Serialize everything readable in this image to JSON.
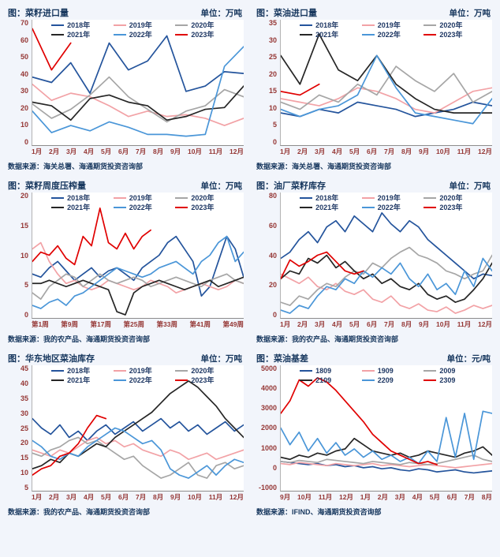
{
  "colors": {
    "title_text": "#17375e",
    "axis_labels": "#953735",
    "source_text": "#17375e",
    "page_background": "#f2f5fb"
  },
  "chart_data": [
    {
      "type": "line",
      "title": "图：菜籽进口量",
      "unit_label": "单位：万吨",
      "source": "数据来源：海关总署、海通期货投资咨询部",
      "ylim": [
        0,
        70
      ],
      "yticks": [
        0,
        10,
        20,
        30,
        40,
        50,
        60,
        70
      ],
      "x_ticks": [
        "1月",
        "2月",
        "3月",
        "4月",
        "5月",
        "6月",
        "7月",
        "8月",
        "9月",
        "10月",
        "11月",
        "12月"
      ],
      "grid": false,
      "legend_position": "top",
      "series": [
        {
          "name": "2018年",
          "color": "#24549c",
          "values": [
            38,
            35,
            46,
            29,
            57,
            42,
            47,
            61,
            30,
            33,
            41,
            40
          ]
        },
        {
          "name": "2019年",
          "color": "#f2a2a6",
          "values": [
            34,
            25,
            29,
            27,
            22,
            16,
            19,
            16,
            17,
            15,
            11,
            15
          ]
        },
        {
          "name": "2020年",
          "color": "#a6a6a6",
          "values": [
            23,
            15,
            20,
            28,
            38,
            27,
            20,
            13,
            19,
            22,
            31,
            27
          ]
        },
        {
          "name": "2021年",
          "color": "#262626",
          "values": [
            24,
            22,
            14,
            26,
            28,
            24,
            22,
            14,
            16,
            20,
            21,
            33
          ]
        },
        {
          "name": "2022年",
          "color": "#4a96d8",
          "values": [
            19,
            7,
            11,
            8,
            13,
            10,
            6,
            6,
            5,
            6,
            44,
            55
          ]
        },
        {
          "name": "2023年",
          "color": "#e00000",
          "values": [
            65,
            42,
            57,
            null,
            null,
            null,
            null,
            null,
            null,
            null,
            null,
            null
          ]
        }
      ]
    },
    {
      "type": "line",
      "title": "图：菜油进口量",
      "unit_label": "单位：万吨",
      "source": "数据来源：海关总署、海通期货投资咨询部",
      "ylim": [
        0,
        35
      ],
      "yticks": [
        0,
        5,
        10,
        15,
        20,
        25,
        30,
        35
      ],
      "x_ticks": [
        "1月",
        "2月",
        "3月",
        "4月",
        "5月",
        "6月",
        "7月",
        "8月",
        "9月",
        "10月",
        "11月",
        "12月"
      ],
      "grid": false,
      "legend_position": "top",
      "series": [
        {
          "name": "2018年",
          "color": "#24549c",
          "values": [
            9,
            8,
            10,
            9,
            12,
            11,
            10,
            8,
            9,
            10,
            12,
            11
          ]
        },
        {
          "name": "2019年",
          "color": "#f2a2a6",
          "values": [
            13,
            12,
            11,
            13,
            16,
            15,
            13,
            10,
            9,
            12,
            15,
            16
          ]
        },
        {
          "name": "2020年",
          "color": "#a6a6a6",
          "values": [
            12,
            10,
            14,
            12,
            17,
            14,
            22,
            18,
            15,
            20,
            12,
            15
          ]
        },
        {
          "name": "2021年",
          "color": "#262626",
          "values": [
            25,
            17,
            31,
            21,
            18,
            25,
            17,
            13,
            10,
            9,
            9,
            9
          ]
        },
        {
          "name": "2022年",
          "color": "#4a96d8",
          "values": [
            10,
            8,
            10,
            11,
            14,
            25,
            16,
            9,
            8,
            7,
            6,
            13
          ]
        },
        {
          "name": "2023年",
          "color": "#e00000",
          "values": [
            15,
            14,
            17,
            null,
            null,
            null,
            null,
            null,
            null,
            null,
            null,
            null
          ]
        }
      ]
    },
    {
      "type": "line",
      "title": "图：菜籽周度压榨量",
      "unit_label": "单位：万吨",
      "source": "数据来源：我的农产品、海通期货投资咨询部",
      "ylim": [
        0,
        20
      ],
      "yticks": [
        0,
        5,
        10,
        15,
        20
      ],
      "x_ticks": [
        "第1周",
        "第9周",
        "第17周",
        "第25周",
        "第33周",
        "第41周",
        "第49周"
      ],
      "grid": false,
      "legend_position": "top",
      "series": [
        {
          "name": "2018年",
          "color": "#24549c",
          "values": [
            7,
            6.5,
            8,
            9,
            7.5,
            6,
            7,
            8,
            6.5,
            7.5,
            8,
            7,
            6,
            8,
            9,
            10,
            12,
            13,
            11,
            9,
            3.5,
            5,
            9,
            13,
            11,
            6.5
          ]
        },
        {
          "name": "2019年",
          "color": "#f2a2a6",
          "values": [
            11,
            12,
            9,
            7,
            5.5,
            6,
            5,
            4.5,
            5,
            6,
            5.5,
            5,
            4.5,
            5,
            6,
            5.5,
            5,
            4,
            4.5,
            5,
            5.5,
            5,
            4.5,
            5,
            6,
            5.5
          ]
        },
        {
          "name": "2020年",
          "color": "#a6a6a6",
          "values": [
            4,
            3,
            5,
            6,
            7,
            6.5,
            5,
            6,
            7,
            6,
            5.5,
            6,
            6.5,
            6,
            5,
            5.5,
            6,
            6.5,
            6,
            5.5,
            5,
            6,
            6.5,
            7,
            6,
            5.5
          ]
        },
        {
          "name": "2021年",
          "color": "#262626",
          "values": [
            5.5,
            5.5,
            6,
            5.5,
            5,
            5.5,
            6,
            5.5,
            5,
            4.5,
            1,
            0.5,
            4,
            5,
            5.5,
            6,
            5.5,
            5,
            4.5,
            5,
            5.5,
            6,
            5,
            5.5,
            6,
            6.5
          ]
        },
        {
          "name": "2022年",
          "color": "#4a96d8",
          "values": [
            2,
            1.5,
            2.5,
            3,
            2,
            3.5,
            4,
            5,
            6,
            7,
            8,
            7.5,
            7,
            6.5,
            7,
            8,
            8.5,
            9,
            8,
            7,
            9,
            10,
            12,
            13,
            9,
            10.5
          ]
        },
        {
          "name": "2023年",
          "color": "#e00000",
          "values": [
            9,
            10.5,
            10,
            11.5,
            9.5,
            8.5,
            13,
            11.5,
            17.5,
            12,
            11,
            13.5,
            11,
            13,
            14,
            null,
            null,
            null,
            null,
            null,
            null,
            null,
            null,
            null,
            null,
            null
          ]
        }
      ]
    },
    {
      "type": "line",
      "title": "图：油厂菜籽库存",
      "unit_label": "单位：万吨",
      "source": "数据来源：我的农产品、海通期货投资咨询部",
      "ylim": [
        0,
        80
      ],
      "yticks": [
        0,
        20,
        40,
        60,
        80
      ],
      "x_ticks": [
        "1月",
        "2月",
        "3月",
        "4月",
        "5月",
        "6月",
        "7月",
        "8月",
        "9月",
        "10月",
        "11月",
        "12月"
      ],
      "grid": false,
      "legend_position": "top",
      "series": [
        {
          "name": "2018年",
          "color": "#24549c",
          "values": [
            38,
            42,
            50,
            55,
            48,
            58,
            62,
            55,
            65,
            60,
            55,
            67,
            60,
            55,
            62,
            58,
            50,
            45,
            40,
            35,
            30,
            25,
            28,
            27
          ]
        },
        {
          "name": "2019年",
          "color": "#f2a2a6",
          "values": [
            28,
            25,
            22,
            26,
            20,
            18,
            22,
            17,
            15,
            18,
            12,
            10,
            14,
            8,
            6,
            9,
            5,
            4,
            7,
            3,
            5,
            8,
            6,
            8
          ]
        },
        {
          "name": "2020年",
          "color": "#a6a6a6",
          "values": [
            10,
            8,
            14,
            12,
            18,
            22,
            20,
            26,
            30,
            28,
            35,
            32,
            38,
            42,
            45,
            40,
            38,
            35,
            30,
            28,
            25,
            28,
            30,
            40
          ]
        },
        {
          "name": "2021年",
          "color": "#262626",
          "values": [
            25,
            30,
            28,
            38,
            35,
            40,
            32,
            36,
            30,
            25,
            28,
            22,
            25,
            20,
            18,
            22,
            15,
            12,
            14,
            10,
            12,
            18,
            25,
            35
          ]
        },
        {
          "name": "2022年",
          "color": "#4a96d8",
          "values": [
            5,
            3,
            8,
            6,
            14,
            20,
            18,
            25,
            22,
            30,
            26,
            32,
            28,
            35,
            25,
            20,
            28,
            18,
            22,
            15,
            30,
            20,
            38,
            30
          ]
        },
        {
          "name": "2023年",
          "color": "#e00000",
          "values": [
            25,
            37,
            33,
            36,
            40,
            42,
            36,
            30,
            28,
            30,
            null,
            null,
            null,
            null,
            null,
            null,
            null,
            null,
            null,
            null,
            null,
            null,
            null,
            null
          ]
        }
      ]
    },
    {
      "type": "line",
      "title": "图：华东地区菜油库存",
      "unit_label": "单位：万吨",
      "source": "数据来源：我的农产品、海通期货投资咨询部",
      "ylim": [
        5,
        45
      ],
      "yticks": [
        5,
        10,
        15,
        20,
        25,
        30,
        35,
        40,
        45
      ],
      "x_ticks": [
        "1月",
        "2月",
        "3月",
        "4月",
        "5月",
        "6月",
        "7月",
        "8月",
        "9月",
        "10月",
        "11月",
        "12月"
      ],
      "grid": false,
      "legend_position": "top",
      "series": [
        {
          "name": "2018年",
          "color": "#24549c",
          "values": [
            28,
            25,
            23,
            26,
            22,
            24,
            21,
            24,
            26,
            23,
            25,
            27,
            24,
            26,
            28,
            25,
            27,
            24,
            26,
            23,
            25,
            27,
            24,
            26
          ]
        },
        {
          "name": "2019年",
          "color": "#f2a2a6",
          "values": [
            18,
            17,
            16,
            18,
            17,
            19,
            21,
            22,
            20,
            21,
            19,
            20,
            18,
            17,
            16,
            18,
            17,
            15,
            16,
            17,
            15,
            16,
            17,
            18
          ]
        },
        {
          "name": "2020年",
          "color": "#a6a6a6",
          "values": [
            17,
            16,
            18,
            19,
            21,
            22,
            20,
            21,
            19,
            17,
            15,
            16,
            13,
            11,
            9,
            10,
            12,
            14,
            10,
            9,
            13,
            14,
            12,
            13
          ]
        },
        {
          "name": "2021年",
          "color": "#262626",
          "values": [
            12,
            13,
            15,
            14,
            17,
            16,
            18,
            20,
            19,
            22,
            24,
            26,
            28,
            30,
            33,
            36,
            38,
            40,
            38,
            35,
            32,
            28,
            25,
            22
          ]
        },
        {
          "name": "2022年",
          "color": "#4a96d8",
          "values": [
            21,
            19,
            16,
            15,
            17,
            16,
            19,
            21,
            23,
            25,
            24,
            22,
            20,
            21,
            18,
            12,
            10,
            9,
            11,
            13,
            10,
            13,
            15,
            14
          ]
        },
        {
          "name": "2023年",
          "color": "#e00000",
          "values": [
            10,
            12,
            13,
            16,
            17,
            20,
            25,
            29,
            28,
            null,
            null,
            null,
            null,
            null,
            null,
            null,
            null,
            null,
            null,
            null,
            null,
            null,
            null,
            null
          ]
        }
      ]
    },
    {
      "type": "line",
      "title": "图：菜油基差",
      "unit_label": "单位：元/吨",
      "source": "数据来源：IFIND、海通期货投资咨询部",
      "ylim": [
        -1000,
        5000
      ],
      "yticks": [
        -1000,
        0,
        1000,
        2000,
        3000,
        4000,
        5000
      ],
      "x_ticks": [
        "9月",
        "10月",
        "11月",
        "12月",
        "1月",
        "2月",
        "3月",
        "4月",
        "5月",
        "6月",
        "7月",
        "8月"
      ],
      "grid": false,
      "legend_position": "top",
      "series": [
        {
          "name": "1809",
          "color": "#24549c",
          "values": [
            400,
            350,
            300,
            250,
            300,
            200,
            250,
            150,
            200,
            100,
            150,
            50,
            100,
            0,
            -50,
            50,
            0,
            -100,
            -50,
            0,
            -100,
            -150,
            -100,
            -50
          ]
        },
        {
          "name": "1909",
          "color": "#f2a2a6",
          "values": [
            300,
            250,
            350,
            300,
            250,
            200,
            300,
            250,
            200,
            250,
            300,
            200,
            250,
            200,
            150,
            200,
            250,
            200,
            150,
            100,
            150,
            200,
            250,
            300
          ]
        },
        {
          "name": "2009",
          "color": "#a6a6a6",
          "values": [
            400,
            350,
            450,
            400,
            350,
            500,
            450,
            400,
            350,
            300,
            400,
            350,
            300,
            250,
            350,
            300,
            250,
            300,
            400,
            500,
            600,
            700,
            500,
            400
          ]
        },
        {
          "name": "2109",
          "color": "#262626",
          "values": [
            600,
            500,
            700,
            600,
            800,
            700,
            900,
            1000,
            1500,
            1200,
            900,
            800,
            700,
            800,
            600,
            700,
            900,
            800,
            700,
            600,
            800,
            900,
            1100,
            700
          ]
        },
        {
          "name": "2209",
          "color": "#4a96d8",
          "values": [
            2000,
            1200,
            1800,
            900,
            1500,
            800,
            1300,
            700,
            1000,
            600,
            900,
            500,
            700,
            400,
            600,
            300,
            900,
            400,
            2500,
            600,
            2700,
            500,
            2800,
            2700
          ]
        },
        {
          "name": "2309",
          "color": "#e00000",
          "values": [
            2700,
            3300,
            4300,
            4000,
            4400,
            4200,
            3800,
            3300,
            2800,
            2300,
            1700,
            1300,
            900,
            700,
            500,
            300,
            400,
            250,
            null,
            null,
            null,
            null,
            null,
            null
          ]
        }
      ]
    }
  ]
}
